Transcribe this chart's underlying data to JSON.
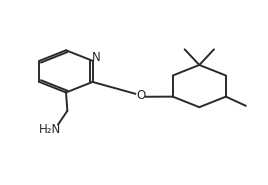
{
  "bg_color": "#ffffff",
  "line_color": "#2a2a2a",
  "line_width": 1.4,
  "figsize": [
    2.68,
    1.85
  ],
  "dpi": 100,
  "N_label": "N",
  "O_label": "O",
  "NH2_label": "H₂N",
  "label_fontsize": 8.5
}
